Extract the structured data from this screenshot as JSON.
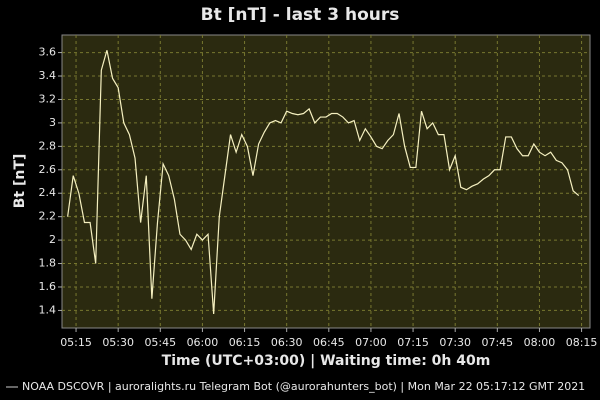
{
  "chart_data": {
    "type": "line",
    "title": "Bt [nT] - last 3 hours",
    "xlabel": "Time (UTC+03:00) | Waiting time: 0h 40m",
    "ylabel": "Bt [nT]",
    "footer": "| auroralights.ru Telegram Bot (@aurorahunters_bot) | Mon Mar 22 05:17:12 GMT 2021",
    "grid": true,
    "xlim": [
      "05:10",
      "08:18"
    ],
    "xticks": [
      "05:15",
      "05:30",
      "05:45",
      "06:00",
      "06:15",
      "06:30",
      "06:45",
      "07:00",
      "07:15",
      "07:30",
      "07:45",
      "08:00",
      "08:15"
    ],
    "ylim": [
      1.25,
      3.75
    ],
    "yticks": [
      1.4,
      1.6,
      1.8,
      2.0,
      2.2,
      2.4,
      2.6,
      2.8,
      3.0,
      3.2,
      3.4,
      3.6
    ],
    "x": [
      "05:12",
      "05:14",
      "05:16",
      "05:18",
      "05:20",
      "05:22",
      "05:24",
      "05:26",
      "05:28",
      "05:30",
      "05:32",
      "05:34",
      "05:36",
      "05:38",
      "05:40",
      "05:42",
      "05:44",
      "05:46",
      "05:48",
      "05:50",
      "05:52",
      "05:54",
      "05:56",
      "05:58",
      "06:00",
      "06:02",
      "06:04",
      "06:06",
      "06:08",
      "06:10",
      "06:12",
      "06:14",
      "06:16",
      "06:18",
      "06:20",
      "06:22",
      "06:24",
      "06:26",
      "06:28",
      "06:30",
      "06:32",
      "06:34",
      "06:36",
      "06:38",
      "06:40",
      "06:42",
      "06:44",
      "06:46",
      "06:48",
      "06:50",
      "06:52",
      "06:54",
      "06:56",
      "06:58",
      "07:00",
      "07:02",
      "07:04",
      "07:06",
      "07:08",
      "07:10",
      "07:12",
      "07:14",
      "07:16",
      "07:18",
      "07:20",
      "07:22",
      "07:24",
      "07:26",
      "07:28",
      "07:30",
      "07:32",
      "07:34",
      "07:36",
      "07:38",
      "07:40",
      "07:42",
      "07:44",
      "07:46",
      "07:48",
      "07:50",
      "07:52",
      "07:54",
      "07:56",
      "07:58",
      "08:00",
      "08:02",
      "08:04",
      "08:06",
      "08:08",
      "08:10",
      "08:12",
      "08:14"
    ],
    "series": [
      {
        "name": "NOAA DSCOVR",
        "color": "#f5f0c0",
        "values": [
          2.2,
          2.55,
          2.4,
          2.15,
          2.15,
          1.8,
          3.45,
          3.62,
          3.38,
          3.3,
          3.0,
          2.9,
          2.7,
          2.15,
          2.55,
          1.5,
          2.15,
          2.65,
          2.55,
          2.35,
          2.05,
          2.0,
          1.92,
          2.05,
          2.0,
          2.05,
          1.37,
          2.2,
          2.55,
          2.9,
          2.75,
          2.9,
          2.8,
          2.55,
          2.82,
          2.92,
          3.0,
          3.02,
          3.0,
          3.1,
          3.08,
          3.07,
          3.08,
          3.12,
          3.0,
          3.05,
          3.05,
          3.08,
          3.08,
          3.05,
          3.0,
          3.02,
          2.85,
          2.95,
          2.88,
          2.8,
          2.78,
          2.85,
          2.9,
          3.08,
          2.8,
          2.62,
          2.62,
          3.1,
          2.95,
          3.0,
          2.9,
          2.9,
          2.6,
          2.72,
          2.45,
          2.43,
          2.46,
          2.48,
          2.52,
          2.55,
          2.6,
          2.6,
          2.88,
          2.88,
          2.78,
          2.72,
          2.72,
          2.82,
          2.75,
          2.72,
          2.75,
          2.68,
          2.66,
          2.6,
          2.42,
          2.38
        ]
      }
    ]
  }
}
